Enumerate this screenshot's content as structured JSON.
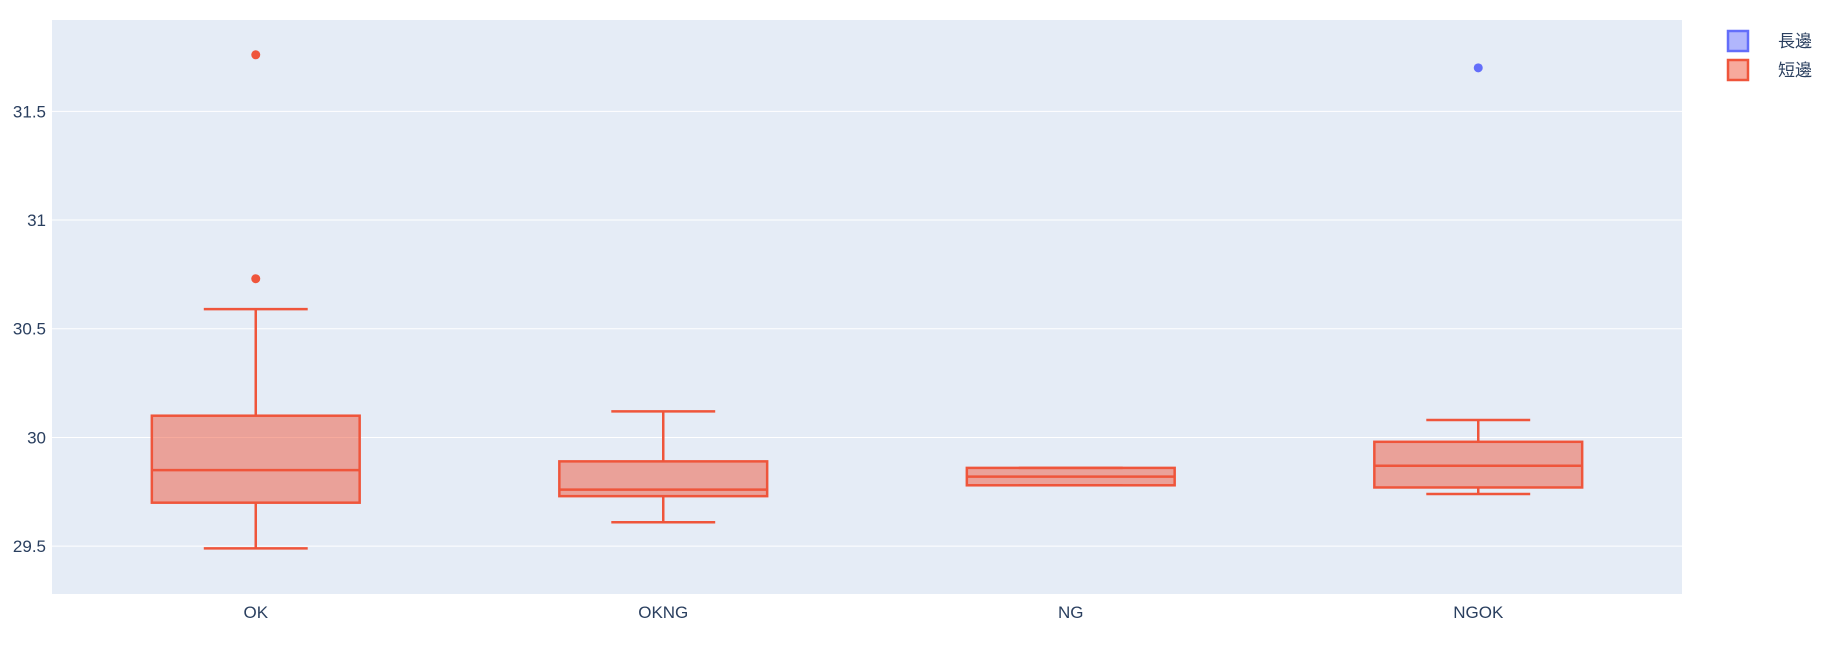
{
  "chart_data": {
    "type": "box",
    "categories": [
      "OK",
      "OKNG",
      "NG",
      "NGOK"
    ],
    "ylim": [
      29.28,
      31.92
    ],
    "yticks": [
      29.5,
      30,
      30.5,
      31,
      31.5
    ],
    "ytick_labels": [
      "29.5",
      "30",
      "30.5",
      "31",
      "31.5"
    ],
    "grid": true,
    "legend_position": "top-right",
    "colors": {
      "plot_bg": "#e5ecf6",
      "grid": "#ffffff",
      "tick_text": "#2a3f5f",
      "series_long": "#636efa",
      "series_short": "#ef553b"
    },
    "series": [
      {
        "name": "長邊",
        "color": "#636efa",
        "boxes": [],
        "outliers": [
          {
            "category": "NGOK",
            "y": 31.7
          }
        ]
      },
      {
        "name": "短邊",
        "color": "#ef553b",
        "boxes": [
          {
            "category": "OK",
            "lower_fence": 29.49,
            "q1": 29.7,
            "median": 29.85,
            "q3": 30.1,
            "upper_fence": 30.59
          },
          {
            "category": "OKNG",
            "lower_fence": 29.61,
            "q1": 29.73,
            "median": 29.76,
            "q3": 29.89,
            "upper_fence": 30.12
          },
          {
            "category": "NG",
            "lower_fence": 29.78,
            "q1": 29.78,
            "median": 29.82,
            "q3": 29.86,
            "upper_fence": 29.86
          },
          {
            "category": "NGOK",
            "lower_fence": 29.74,
            "q1": 29.77,
            "median": 29.87,
            "q3": 29.98,
            "upper_fence": 30.08
          }
        ],
        "outliers": [
          {
            "category": "OK",
            "y": 31.76
          },
          {
            "category": "OK",
            "y": 30.73
          }
        ]
      }
    ]
  }
}
